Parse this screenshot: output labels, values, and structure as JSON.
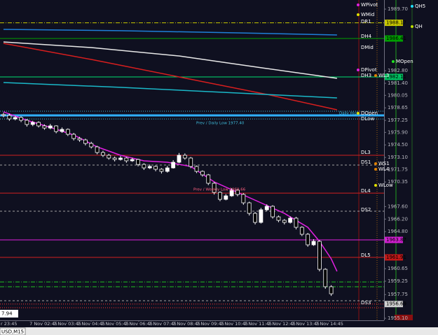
{
  "chart_data": {
    "type": "candlestick",
    "tab": "USD,M15",
    "cursor_label": "7.94",
    "ylim": [
      1954.87,
      1990.72
    ],
    "yticks": [
      {
        "value": 1989.7,
        "label": "1989.70"
      },
      {
        "value": 1982.8,
        "label": "1982.80"
      },
      {
        "value": 1981.4,
        "label": "1981.40"
      },
      1980.05,
      1978.65,
      1977.25,
      {
        "value": 1975.9,
        "label": "1975.90"
      },
      {
        "value": 1974.5,
        "label": "1974.50"
      },
      {
        "value": 1973.1,
        "label": "1973.10"
      },
      1971.75,
      1970.35,
      {
        "value": 1967.6,
        "label": "1967.60"
      },
      {
        "value": 1966.2,
        "label": "1966.20"
      },
      {
        "value": 1964.8,
        "label": "1964.80"
      },
      1960.65,
      1959.25,
      1957.75,
      {
        "value": 1955.1,
        "label": "1955.10"
      }
    ],
    "x_labels": [
      "r 23:45",
      "7 Nov 02:45",
      "7 Nov 03:45",
      "7 Nov 04:45",
      "7 Nov 05:45",
      "7 Nov 06:45",
      "7 Nov 07:45",
      "7 Nov 08:45",
      "7 Nov 09:45",
      "7 Nov 10:45",
      "7 Nov 11:45",
      "7 Nov 12:45",
      "7 Nov 13:45",
      "7 Nov 14:45"
    ],
    "candles": [
      [
        1977.9,
        1978.1,
        1977.6,
        1977.8
      ],
      [
        1977.8,
        1978.0,
        1977.2,
        1977.41
      ],
      [
        1977.41,
        1977.75,
        1977.25,
        1977.57
      ],
      [
        1977.57,
        1977.7,
        1977.05,
        1977.26
      ],
      [
        1977.26,
        1977.4,
        1976.55,
        1976.79
      ],
      [
        1976.79,
        1977.2,
        1976.6,
        1977.02
      ],
      [
        1977.02,
        1977.15,
        1976.45,
        1976.63
      ],
      [
        1976.63,
        1976.8,
        1976.2,
        1976.39
      ],
      [
        1976.39,
        1976.85,
        1976.25,
        1976.63
      ],
      [
        1976.63,
        1976.7,
        1975.8,
        1976.0
      ],
      [
        1976.0,
        1976.45,
        1975.85,
        1976.24
      ],
      [
        1976.24,
        1976.35,
        1975.5,
        1975.69
      ],
      [
        1975.69,
        1975.85,
        1975.0,
        1975.22
      ],
      [
        1975.22,
        1975.4,
        1974.85,
        1975.06
      ],
      [
        1975.06,
        1975.2,
        1974.45,
        1974.67
      ],
      [
        1974.67,
        1974.85,
        1974.1,
        1974.28
      ],
      [
        1974.28,
        1974.4,
        1973.45,
        1973.65
      ],
      [
        1973.65,
        1973.85,
        1973.15,
        1973.34
      ],
      [
        1973.34,
        1973.5,
        1972.85,
        1973.03
      ],
      [
        1973.03,
        1973.2,
        1972.65,
        1972.87
      ],
      [
        1972.87,
        1973.25,
        1972.75,
        1973.03
      ],
      [
        1973.03,
        1973.15,
        1972.5,
        1972.72
      ],
      [
        1972.72,
        1973.05,
        1972.6,
        1972.87
      ],
      [
        1972.87,
        1972.95,
        1972.1,
        1972.32
      ],
      [
        1972.32,
        1972.45,
        1971.7,
        1971.93
      ],
      [
        1971.93,
        1972.3,
        1971.8,
        1972.09
      ],
      [
        1972.09,
        1972.2,
        1971.55,
        1971.78
      ],
      [
        1971.78,
        1971.9,
        1971.3,
        1971.54
      ],
      [
        1971.54,
        1972.15,
        1971.4,
        1971.93
      ],
      [
        1971.93,
        1972.8,
        1971.85,
        1972.56
      ],
      [
        1972.56,
        1973.6,
        1972.45,
        1973.34
      ],
      [
        1973.34,
        1973.55,
        1972.85,
        1973.03
      ],
      [
        1973.03,
        1973.15,
        1971.9,
        1972.09
      ],
      [
        1972.09,
        1972.2,
        1971.35,
        1971.54
      ],
      [
        1971.54,
        1971.65,
        1970.95,
        1971.15
      ],
      [
        1971.15,
        1971.25,
        1970.0,
        1970.21
      ],
      [
        1970.21,
        1970.35,
        1968.95,
        1969.19
      ],
      [
        1969.19,
        1969.3,
        1968.2,
        1968.41
      ],
      [
        1968.41,
        1969.0,
        1968.3,
        1968.8
      ],
      [
        1968.8,
        1969.65,
        1968.7,
        1969.43
      ],
      [
        1969.43,
        1969.55,
        1968.75,
        1968.96
      ],
      [
        1968.96,
        1969.1,
        1967.8,
        1968.02
      ],
      [
        1968.02,
        1968.15,
        1966.6,
        1966.84
      ],
      [
        1966.84,
        1967.0,
        1965.6,
        1965.83
      ],
      [
        1965.83,
        1967.45,
        1965.7,
        1967.24
      ],
      [
        1967.24,
        1967.85,
        1967.1,
        1967.63
      ],
      [
        1967.63,
        1967.75,
        1966.25,
        1966.45
      ],
      [
        1966.45,
        1966.6,
        1965.85,
        1966.06
      ],
      [
        1966.06,
        1966.2,
        1965.6,
        1965.83
      ],
      [
        1965.83,
        1966.5,
        1965.7,
        1966.3
      ],
      [
        1966.3,
        1966.45,
        1965.05,
        1965.28
      ],
      [
        1965.28,
        1965.4,
        1964.3,
        1964.5
      ],
      [
        1964.5,
        1964.65,
        1963.1,
        1963.32
      ],
      [
        1963.32,
        1963.95,
        1963.2,
        1963.71
      ],
      [
        1963.71,
        1963.85,
        1960.35,
        1960.58
      ],
      [
        1960.58,
        1960.7,
        1958.4,
        1958.63
      ],
      [
        1958.63,
        1958.8,
        1957.6,
        1957.84
      ]
    ],
    "overlays": [
      {
        "color": "#1e7fd8",
        "x": [
          0,
          20,
          40,
          57
        ],
        "values": [
          1987.43,
          1987.28,
          1987.04,
          1986.81
        ]
      },
      {
        "color": "#e8e8e8",
        "x": [
          0,
          15,
          30,
          45,
          57
        ],
        "values": [
          1986.02,
          1985.4,
          1984.46,
          1983.05,
          1981.95
        ]
      },
      {
        "color": "#d81e1e",
        "x": [
          0,
          15,
          30,
          45,
          57
        ],
        "values": [
          1985.87,
          1984.07,
          1982.11,
          1980.15,
          1978.43
        ]
      },
      {
        "color": "#1ab8c8",
        "x": [
          0,
          20,
          40,
          57
        ],
        "values": [
          1981.48,
          1980.94,
          1980.31,
          1979.76
        ]
      },
      {
        "color": "#e020e0",
        "x": [
          0,
          4,
          8,
          12,
          16,
          20,
          24,
          28,
          32,
          36,
          40,
          44,
          48,
          52,
          54,
          56,
          57
        ],
        "values": [
          1978.2,
          1977.26,
          1976.47,
          1975.61,
          1974.28,
          1973.34,
          1972.72,
          1972.56,
          1972.09,
          1970.37,
          1969.19,
          1968.02,
          1966.84,
          1965.28,
          1963.71,
          1961.76,
          1960.35
        ]
      }
    ],
    "levels": [
      {
        "value": 1988.17,
        "color": "#c8c800",
        "style": "dashdot"
      },
      {
        "value": 1986.41,
        "color": "#00a000",
        "style": "solid"
      },
      {
        "value": 1982.11,
        "color": "#00e070",
        "style": "solid"
      },
      {
        "value": 1978.27,
        "color": "#40c0e0",
        "style": "dotted"
      },
      {
        "value": 1977.8,
        "color": "#30b0ff",
        "style": "thick"
      },
      {
        "value": 1977.4,
        "color": "#40c0e0",
        "style": "dotted"
      },
      {
        "value": 1973.34,
        "color": "#d02020",
        "style": "solid"
      },
      {
        "value": 1972.25,
        "color": "#a0a0a0",
        "style": "dashed"
      },
      {
        "value": 1969.11,
        "color": "#d02020",
        "style": "solid"
      },
      {
        "value": 1967.08,
        "color": "#a0a0a0",
        "style": "dashed"
      },
      {
        "value": 1963.87,
        "color": "#e020e0",
        "style": "solid"
      },
      {
        "value": 1961.91,
        "color": "#d02020",
        "style": "solid"
      },
      {
        "value": 1959.17,
        "color": "#20c020",
        "style": "dashdot"
      },
      {
        "value": 1958.63,
        "color": "#20c020",
        "style": "dashdot"
      },
      {
        "value": 1957.06,
        "color": "#a0a0a0",
        "style": "dashed"
      },
      {
        "value": 1956.69,
        "color": "#ff3030",
        "style": "dotted"
      },
      {
        "value": 1956.28,
        "color": "#ff3030",
        "style": "dotted"
      }
    ],
    "price_markers": [
      {
        "value": 1988.17,
        "color": "#c8c800"
      },
      {
        "value": 1986.41,
        "color": "#00a000"
      },
      {
        "value": 1982.11,
        "color": "#00c060"
      },
      {
        "value": 1963.87,
        "color": "#d020d0"
      },
      {
        "value": 1961.91,
        "color": "#c01818"
      },
      {
        "value": 1956.69,
        "color": "#d0d0d0"
      }
    ],
    "annotations": [
      "WPivot",
      "WMid",
      "QH5",
      "DR1",
      "QH",
      "DH4",
      "DMid",
      "MOpen",
      "DPivot",
      "DH3",
      "WL3",
      "Daily High",
      "DOpen",
      "DLow",
      "Prev / Daily Low 1977.40",
      "DL3",
      "DS1",
      "WS1",
      "WL4",
      "Prev / Weekly Low 1969.66",
      "WLow",
      "DL4",
      "DS2",
      "DL5",
      "DS3"
    ]
  }
}
